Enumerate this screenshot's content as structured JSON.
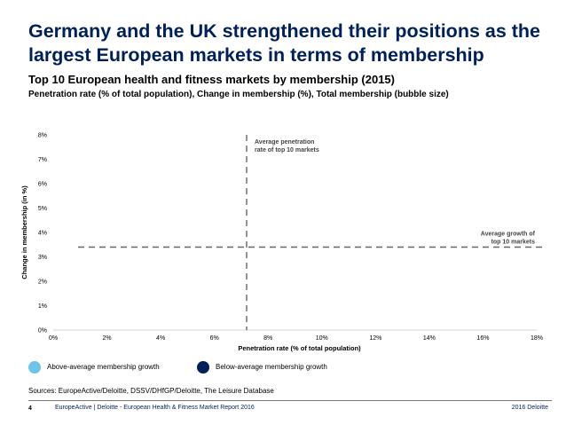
{
  "headline": "Germany and the UK strengthened their positions as the largest European markets in terms of membership",
  "subtitle": "Top 10 European health and fitness markets by membership (2015)",
  "subsubtitle": "Penetration rate (% of total population), Change in membership (%), Total membership (bubble size)",
  "chart_data": {
    "type": "scatter",
    "xlabel": "Penetration rate (% of total population)",
    "ylabel": "Change in membership (in %)",
    "xlim": [
      0,
      18
    ],
    "ylim": [
      0,
      8
    ],
    "x_ticks": [
      "0%",
      "2%",
      "4%",
      "6%",
      "8%",
      "10%",
      "12%",
      "14%",
      "16%",
      "18%"
    ],
    "y_ticks": [
      "0%",
      "1%",
      "2%",
      "3%",
      "4%",
      "5%",
      "6%",
      "7%",
      "8%"
    ],
    "grid": false,
    "reference_lines": [
      {
        "axis": "x",
        "value": 7.2,
        "label": "Average penetration rate of top 10 markets"
      },
      {
        "axis": "y",
        "value": 3.4,
        "label": "Average growth of top 10 markets"
      }
    ],
    "series": []
  },
  "legend": {
    "above": {
      "label": "Above-average membership growth",
      "color": "#6cc5e9"
    },
    "below": {
      "label": "Below-average membership growth",
      "color": "#00205c"
    }
  },
  "sources": "Sources: EuropeActive/Deloitte, DSSV/DHfGP/Deloitte, The Leisure Database",
  "footer": {
    "page": "4",
    "source": "EuropeActive | Deloitte - European Health & Fitness Market Report 2016",
    "brand": "2016 Deloitte"
  }
}
